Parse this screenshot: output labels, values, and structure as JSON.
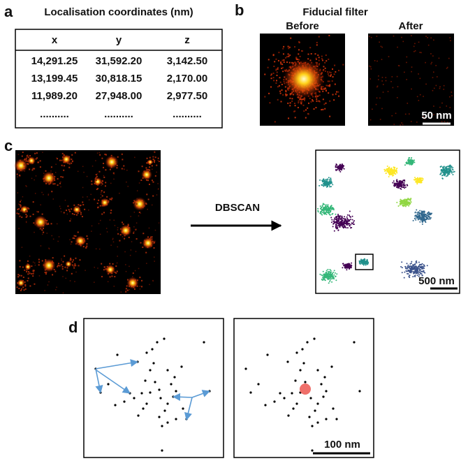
{
  "panel_a": {
    "label": "a",
    "title": "Localisation coordinates (nm)",
    "table": {
      "header": [
        "x",
        "y",
        "z"
      ],
      "rows": [
        [
          "14,291.25",
          "31,592.20",
          "3,142.50"
        ],
        [
          "13,199.45",
          "30,818.15",
          "2,170.00"
        ],
        [
          "11,989.20",
          "27,948.00",
          "2,977.50"
        ],
        [
          "..........",
          "..........",
          ".........."
        ]
      ]
    }
  },
  "panel_b": {
    "label": "b",
    "title": "Fiducial filter",
    "before": "Before",
    "after": "After",
    "scale_bar": "50 nm"
  },
  "panel_c": {
    "label": "c",
    "arrow_label": "DBSCAN",
    "scale_bar": "500 nm"
  },
  "panel_d": {
    "label": "d",
    "scale_bar": "100 nm"
  }
}
